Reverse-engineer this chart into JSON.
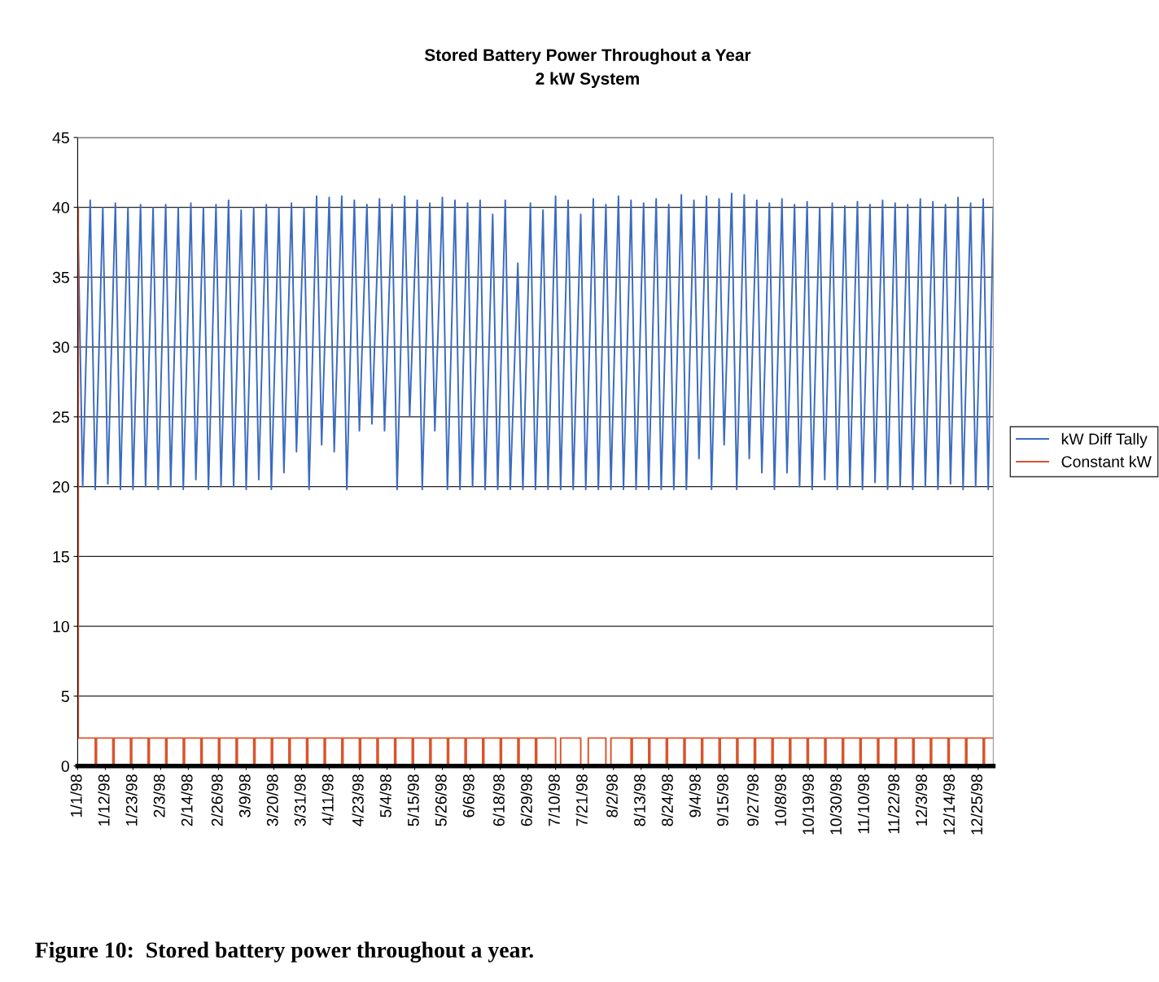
{
  "chart_data": {
    "type": "line",
    "title": "Stored Battery Power Throughout a Year",
    "subtitle": "2 kW System",
    "xlim": [
      "1998-01-01",
      "1998-12-31"
    ],
    "xticks": [
      {
        "value": "1998-01-01",
        "label": "1/1/98"
      },
      {
        "value": "1998-01-12",
        "label": "1/12/98"
      },
      {
        "value": "1998-01-23",
        "label": "1/23/98"
      },
      {
        "value": "1998-02-03",
        "label": "2/3/98"
      },
      {
        "value": "1998-02-14",
        "label": "2/14/98"
      },
      {
        "value": "1998-02-26",
        "label": "2/26/98"
      },
      {
        "value": "1998-03-09",
        "label": "3/9/98"
      },
      {
        "value": "1998-03-20",
        "label": "3/20/98"
      },
      {
        "value": "1998-03-31",
        "label": "3/31/98"
      },
      {
        "value": "1998-04-11",
        "label": "4/11/98"
      },
      {
        "value": "1998-04-23",
        "label": "4/23/98"
      },
      {
        "value": "1998-05-04",
        "label": "5/4/98"
      },
      {
        "value": "1998-05-15",
        "label": "5/15/98"
      },
      {
        "value": "1998-05-26",
        "label": "5/26/98"
      },
      {
        "value": "1998-06-06",
        "label": "6/6/98"
      },
      {
        "value": "1998-06-18",
        "label": "6/18/98"
      },
      {
        "value": "1998-06-29",
        "label": "6/29/98"
      },
      {
        "value": "1998-07-10",
        "label": "7/10/98"
      },
      {
        "value": "1998-07-21",
        "label": "7/21/98"
      },
      {
        "value": "1998-08-02",
        "label": "8/2/98"
      },
      {
        "value": "1998-08-13",
        "label": "8/13/98"
      },
      {
        "value": "1998-08-24",
        "label": "8/24/98"
      },
      {
        "value": "1998-09-04",
        "label": "9/4/98"
      },
      {
        "value": "1998-09-15",
        "label": "9/15/98"
      },
      {
        "value": "1998-09-27",
        "label": "9/27/98"
      },
      {
        "value": "1998-10-08",
        "label": "10/8/98"
      },
      {
        "value": "1998-10-19",
        "label": "10/19/98"
      },
      {
        "value": "1998-10-30",
        "label": "10/30/98"
      },
      {
        "value": "1998-11-10",
        "label": "11/10/98"
      },
      {
        "value": "1998-11-22",
        "label": "11/22/98"
      },
      {
        "value": "1998-12-03",
        "label": "12/3/98"
      },
      {
        "value": "1998-12-14",
        "label": "12/14/98"
      },
      {
        "value": "1998-12-25",
        "label": "12/25/98"
      }
    ],
    "ylim": [
      0,
      45
    ],
    "yticks": [
      0,
      5,
      10,
      15,
      20,
      25,
      30,
      35,
      40,
      45
    ],
    "grid": "y",
    "legend": "right",
    "annotations": [
      "Figure 10:  Stored battery power throughout a year."
    ],
    "series": [
      {
        "name": "kW Diff Tally",
        "color": "#3a6bc0",
        "x": [
          "1998-01-01",
          "1998-01-03",
          "1998-01-06",
          "1998-01-08",
          "1998-01-11",
          "1998-01-13",
          "1998-01-16",
          "1998-01-18",
          "1998-01-21",
          "1998-01-23",
          "1998-01-26",
          "1998-01-28",
          "1998-01-31",
          "1998-02-02",
          "1998-02-05",
          "1998-02-07",
          "1998-02-10",
          "1998-02-12",
          "1998-02-15",
          "1998-02-17",
          "1998-02-20",
          "1998-02-22",
          "1998-02-25",
          "1998-02-27",
          "1998-03-02",
          "1998-03-04",
          "1998-03-07",
          "1998-03-09",
          "1998-03-12",
          "1998-03-14",
          "1998-03-17",
          "1998-03-19",
          "1998-03-22",
          "1998-03-24",
          "1998-03-27",
          "1998-03-29",
          "1998-04-01",
          "1998-04-03",
          "1998-04-06",
          "1998-04-08",
          "1998-04-11",
          "1998-04-13",
          "1998-04-16",
          "1998-04-18",
          "1998-04-21",
          "1998-04-23",
          "1998-04-26",
          "1998-04-28",
          "1998-05-01",
          "1998-05-03",
          "1998-05-06",
          "1998-05-08",
          "1998-05-11",
          "1998-05-13",
          "1998-05-16",
          "1998-05-18",
          "1998-05-21",
          "1998-05-23",
          "1998-05-26",
          "1998-05-28",
          "1998-05-31",
          "1998-06-02",
          "1998-06-05",
          "1998-06-07",
          "1998-06-10",
          "1998-06-12",
          "1998-06-15",
          "1998-06-17",
          "1998-06-20",
          "1998-06-22",
          "1998-06-25",
          "1998-06-27",
          "1998-06-30",
          "1998-07-02",
          "1998-07-05",
          "1998-07-07",
          "1998-07-10",
          "1998-07-12",
          "1998-07-15",
          "1998-07-17",
          "1998-07-20",
          "1998-07-22",
          "1998-07-25",
          "1998-07-27",
          "1998-07-30",
          "1998-08-01",
          "1998-08-04",
          "1998-08-06",
          "1998-08-09",
          "1998-08-11",
          "1998-08-14",
          "1998-08-16",
          "1998-08-19",
          "1998-08-21",
          "1998-08-24",
          "1998-08-26",
          "1998-08-29",
          "1998-08-31",
          "1998-09-03",
          "1998-09-05",
          "1998-09-08",
          "1998-09-10",
          "1998-09-13",
          "1998-09-15",
          "1998-09-18",
          "1998-09-20",
          "1998-09-23",
          "1998-09-25",
          "1998-09-28",
          "1998-09-30",
          "1998-10-03",
          "1998-10-05",
          "1998-10-08",
          "1998-10-10",
          "1998-10-13",
          "1998-10-15",
          "1998-10-18",
          "1998-10-20",
          "1998-10-23",
          "1998-10-25",
          "1998-10-28",
          "1998-10-30",
          "1998-11-02",
          "1998-11-04",
          "1998-11-07",
          "1998-11-09",
          "1998-11-12",
          "1998-11-14",
          "1998-11-17",
          "1998-11-19",
          "1998-11-22",
          "1998-11-24",
          "1998-11-27",
          "1998-11-29",
          "1998-12-02",
          "1998-12-04",
          "1998-12-07",
          "1998-12-09",
          "1998-12-12",
          "1998-12-14",
          "1998-12-17",
          "1998-12-19",
          "1998-12-22",
          "1998-12-24",
          "1998-12-27",
          "1998-12-29",
          "1998-12-31"
        ],
        "values": [
          40,
          20,
          40.5,
          19.8,
          40,
          20.2,
          40.3,
          19.8,
          40,
          19.8,
          40.2,
          20,
          40,
          19.8,
          40.2,
          20,
          40,
          19.8,
          40.3,
          20.5,
          40,
          19.8,
          40.2,
          20,
          40.5,
          20,
          39.8,
          19.8,
          40,
          20.5,
          40.2,
          19.8,
          40,
          21,
          40.3,
          22.5,
          40,
          19.8,
          40.8,
          23,
          40.7,
          22.5,
          40.8,
          19.8,
          40.5,
          24,
          40.2,
          24.5,
          40.6,
          24,
          40.2,
          19.8,
          40.8,
          25,
          40.5,
          19.8,
          40.3,
          24,
          40.7,
          19.8,
          40.5,
          19.8,
          40.3,
          20,
          40.5,
          19.8,
          39.5,
          19.8,
          40.5,
          19.8,
          36,
          19.8,
          40.3,
          19.8,
          39.8,
          19.8,
          40.8,
          19.8,
          40.5,
          19.8,
          39.5,
          19.8,
          40.6,
          19.8,
          40.2,
          19.8,
          40.8,
          19.8,
          40.5,
          19.8,
          40.3,
          19.8,
          40.6,
          19.8,
          40.2,
          19.8,
          40.9,
          19.8,
          40.5,
          22,
          40.8,
          19.8,
          40.6,
          23,
          41,
          19.8,
          40.9,
          22,
          40.5,
          21,
          40.3,
          19.8,
          40.6,
          21,
          40.2,
          20,
          40.4,
          19.8,
          40,
          20.5,
          40.3,
          19.8,
          40.1,
          20,
          40.4,
          19.8,
          40.2,
          20.3,
          40.5,
          19.8,
          40.3,
          20,
          40.2,
          19.8,
          40.6,
          20,
          40.4,
          19.8,
          40.2,
          20.2,
          40.7,
          19.8,
          40.3,
          20,
          40.6,
          19.8,
          40
        ]
      },
      {
        "name": "Constant kW",
        "color": "#d9542b",
        "type": "step",
        "x": [
          "1998-01-01T00:00",
          "1998-01-01T06:00",
          "1998-01-08T00:00",
          "1998-01-08T12:00",
          "1998-01-15T00:00",
          "1998-01-15T12:00",
          "1998-01-22T00:00",
          "1998-01-22T12:00",
          "1998-01-29T00:00",
          "1998-01-29T12:00",
          "1998-02-05T00:00",
          "1998-02-05T12:00",
          "1998-02-12T00:00",
          "1998-02-12T12:00",
          "1998-02-19T00:00",
          "1998-02-19T12:00",
          "1998-02-26T00:00",
          "1998-02-26T12:00",
          "1998-03-05T00:00",
          "1998-03-05T12:00",
          "1998-03-12T00:00",
          "1998-03-12T12:00",
          "1998-03-19T00:00",
          "1998-03-19T12:00",
          "1998-03-26T00:00",
          "1998-03-26T12:00",
          "1998-04-02T00:00",
          "1998-04-02T12:00",
          "1998-04-09T00:00",
          "1998-04-09T12:00",
          "1998-04-16T00:00",
          "1998-04-16T12:00",
          "1998-04-23T00:00",
          "1998-04-23T12:00",
          "1998-04-30T00:00",
          "1998-04-30T12:00",
          "1998-05-07T00:00",
          "1998-05-07T12:00",
          "1998-05-14T00:00",
          "1998-05-14T12:00",
          "1998-05-21T00:00",
          "1998-05-21T12:00",
          "1998-05-28T00:00",
          "1998-05-28T12:00",
          "1998-06-04T00:00",
          "1998-06-04T12:00",
          "1998-06-11T00:00",
          "1998-06-11T12:00",
          "1998-06-18T00:00",
          "1998-06-18T12:00",
          "1998-06-25T00:00",
          "1998-06-25T12:00",
          "1998-07-02T00:00",
          "1998-07-02T12:00",
          "1998-07-10T00:00",
          "1998-07-12T00:00",
          "1998-07-20T00:00",
          "1998-07-23T00:00",
          "1998-07-30T00:00",
          "1998-08-01T00:00",
          "1998-08-09T00:00",
          "1998-08-09T12:00",
          "1998-08-16T00:00",
          "1998-08-16T12:00",
          "1998-08-23T00:00",
          "1998-08-23T12:00",
          "1998-08-30T00:00",
          "1998-08-30T12:00",
          "1998-09-06T00:00",
          "1998-09-06T12:00",
          "1998-09-13T00:00",
          "1998-09-13T12:00",
          "1998-09-20T00:00",
          "1998-09-20T12:00",
          "1998-09-27T00:00",
          "1998-09-27T12:00",
          "1998-10-04T00:00",
          "1998-10-04T12:00",
          "1998-10-11T00:00",
          "1998-10-11T12:00",
          "1998-10-18T00:00",
          "1998-10-18T12:00",
          "1998-10-25T00:00",
          "1998-10-25T12:00",
          "1998-11-01T00:00",
          "1998-11-01T12:00",
          "1998-11-08T00:00",
          "1998-11-08T12:00",
          "1998-11-15T00:00",
          "1998-11-15T12:00",
          "1998-11-22T00:00",
          "1998-11-22T12:00",
          "1998-11-29T00:00",
          "1998-11-29T12:00",
          "1998-12-06T00:00",
          "1998-12-06T12:00",
          "1998-12-13T00:00",
          "1998-12-13T12:00",
          "1998-12-20T00:00",
          "1998-12-20T12:00",
          "1998-12-27T00:00",
          "1998-12-27T12:00",
          "1998-12-31T00:00"
        ],
        "values": [
          40,
          2,
          0,
          2,
          0,
          2,
          0,
          2,
          0,
          2,
          0,
          2,
          0,
          2,
          0,
          2,
          0,
          2,
          0,
          2,
          0,
          2,
          0,
          2,
          0,
          2,
          0,
          2,
          0,
          2,
          0,
          2,
          0,
          2,
          0,
          2,
          0,
          2,
          0,
          2,
          0,
          2,
          0,
          2,
          0,
          2,
          0,
          2,
          0,
          2,
          0,
          2,
          0,
          2,
          0,
          2,
          0,
          2,
          0,
          2,
          0,
          2,
          0,
          2,
          0,
          2,
          0,
          2,
          0,
          2,
          0,
          2,
          0,
          2,
          0,
          2,
          0,
          2,
          0,
          2,
          0,
          2,
          0,
          2,
          0,
          2,
          0,
          2,
          0,
          2,
          0,
          2,
          0,
          2,
          0,
          2,
          0,
          2,
          0,
          2,
          0,
          2,
          2
        ]
      }
    ]
  }
}
